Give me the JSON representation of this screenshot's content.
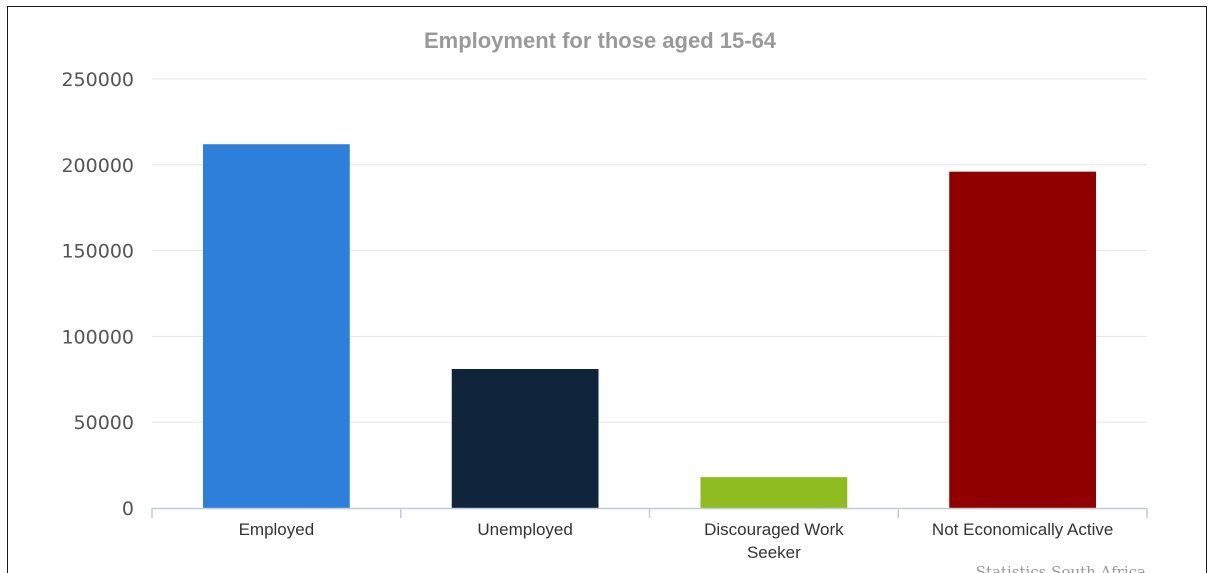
{
  "chart_data": {
    "type": "bar",
    "title": "Employment for those aged 15-64",
    "categories": [
      "Employed",
      "Unemployed",
      "Discouraged Work Seeker",
      "Not Economically Active"
    ],
    "category_lines": [
      [
        "Employed"
      ],
      [
        "Unemployed"
      ],
      [
        "Discouraged Work",
        "Seeker"
      ],
      [
        "Not Economically Active"
      ]
    ],
    "values": [
      212000,
      81000,
      18000,
      196000
    ],
    "colors": [
      "#2e7fd9",
      "#10243b",
      "#8fbc21",
      "#900000"
    ],
    "ylim": [
      0,
      250000
    ],
    "yticks": [
      "0",
      "50000",
      "100000",
      "150000",
      "200000",
      "250000"
    ],
    "grid": true,
    "legend": "none",
    "credit": "Statistics South Africa"
  }
}
